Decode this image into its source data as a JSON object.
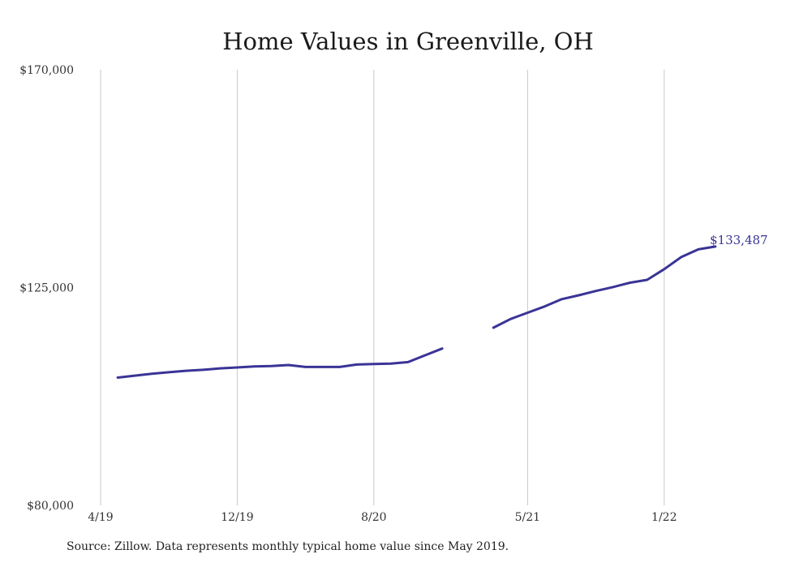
{
  "chart_data": {
    "type": "line",
    "title": "Home Values in Greenville, OH",
    "xlabel": "",
    "ylabel": "",
    "ylim": [
      80000,
      170000
    ],
    "yticks": [
      {
        "value": 80000,
        "label": "$80,000"
      },
      {
        "value": 125000,
        "label": "$125,000"
      },
      {
        "value": 170000,
        "label": "$170,000"
      }
    ],
    "xticks": [
      {
        "x": "2019-04",
        "label": "4/19"
      },
      {
        "x": "2019-12",
        "label": "12/19"
      },
      {
        "x": "2020-08",
        "label": "8/20"
      },
      {
        "x": "2021-05",
        "label": "5/21"
      },
      {
        "x": "2022-01",
        "label": "1/22"
      }
    ],
    "xlim": [
      "2019-04",
      "2022-05"
    ],
    "grid": "vertical",
    "series": [
      {
        "x": [
          "2019-05",
          "2019-06",
          "2019-07",
          "2019-08",
          "2019-09",
          "2019-10",
          "2019-11",
          "2019-12",
          "2020-01",
          "2020-02",
          "2020-03",
          "2020-04",
          "2020-05",
          "2020-06",
          "2020-07",
          "2020-08",
          "2020-09",
          "2020-10",
          "2020-11",
          "2020-12",
          "2021-01",
          "2021-02",
          "2021-03",
          "2021-04",
          "2021-05",
          "2021-06",
          "2021-07",
          "2021-08",
          "2021-09",
          "2021-10",
          "2021-11",
          "2021-12",
          "2022-01",
          "2022-02",
          "2022-03",
          "2022-04"
        ],
        "values": [
          106400,
          106800,
          107200,
          107500,
          107800,
          108000,
          108300,
          108500,
          108700,
          108800,
          109000,
          108600,
          108600,
          108600,
          109100,
          109200,
          109300,
          109600,
          111000,
          112400,
          null,
          null,
          116700,
          118500,
          119800,
          121100,
          122600,
          123400,
          124300,
          125100,
          126000,
          126600,
          128800,
          131300,
          132900,
          133487
        ],
        "color": "#3a3496"
      }
    ],
    "end_label": {
      "text": "$133,487",
      "color": "#3a3496"
    }
  },
  "footer": {
    "source": "Source: Zillow. Data represents monthly typical home value since May 2019."
  }
}
